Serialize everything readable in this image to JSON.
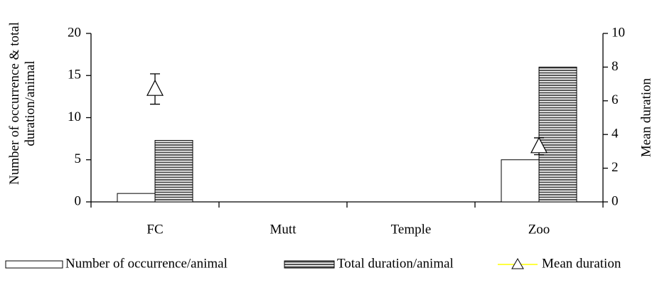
{
  "chart_data": {
    "type": "bar",
    "ylabel": [
      "Number of occurrence & total",
      "duration/animal"
    ],
    "y2label": "Mean duration",
    "categories": [
      "FC",
      "Mutt",
      "Temple",
      "Zoo"
    ],
    "series": [
      {
        "name": "Number of occurrence/animal",
        "color": "#ffffff",
        "values": [
          1,
          0,
          0,
          5
        ]
      },
      {
        "name": "Total duration/animal",
        "color": "#555555",
        "values": [
          7.3,
          0,
          0,
          16
        ]
      },
      {
        "name": "Mean duration",
        "type": "line",
        "axis": "y2",
        "color": "#ffff00",
        "values": [
          6.7,
          null,
          null,
          3.3
        ],
        "errors": [
          0.9,
          null,
          null,
          0.5
        ]
      }
    ],
    "ylim": [
      0,
      20
    ],
    "yticks": [
      0,
      5,
      10,
      15,
      20
    ],
    "y2lim": [
      0,
      10
    ],
    "y2ticks": [
      0,
      2,
      4,
      6,
      8,
      10
    ],
    "legend": "bottom"
  }
}
